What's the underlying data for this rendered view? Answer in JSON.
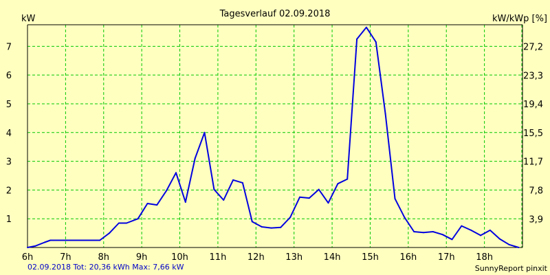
{
  "colors": {
    "background": "#ffffc0",
    "grid": "#00c800",
    "line": "#0000e0",
    "footer_text": "#0000c8"
  },
  "chart_data": {
    "type": "line",
    "title": "Tagesverlauf 02.09.2018",
    "ylabel_left": "kW",
    "ylabel_right": "kW/kWp [%]",
    "xlim": [
      6,
      19
    ],
    "ylim": [
      0,
      7.75
    ],
    "x_ticks": [
      6,
      7,
      8,
      9,
      10,
      11,
      12,
      13,
      14,
      15,
      16,
      17,
      18
    ],
    "x_tick_labels": [
      "6h",
      "7h",
      "8h",
      "9h",
      "10h",
      "11h",
      "12h",
      "13h",
      "14h",
      "15h",
      "16h",
      "17h",
      "18h"
    ],
    "y_ticks_left": [
      1,
      2,
      3,
      4,
      5,
      6,
      7
    ],
    "y_tick_labels_left": [
      "1",
      "2",
      "3",
      "4",
      "5",
      "6",
      "7"
    ],
    "y_ticks_right": [
      0.998,
      1.998,
      3.0,
      3.996,
      4.995,
      5.995,
      6.995
    ],
    "y_tick_labels_right": [
      "3,9",
      "7,8",
      "11,7",
      "15,5",
      "19,4",
      "23,3",
      "27,2"
    ],
    "grid": true,
    "series": [
      {
        "x": [
          6.0,
          6.2,
          6.45,
          6.6,
          7.0,
          7.5,
          7.9,
          8.15,
          8.4,
          8.6,
          8.9,
          9.15,
          9.4,
          9.65,
          9.9,
          10.15,
          10.4,
          10.65,
          10.9,
          11.15,
          11.4,
          11.65,
          11.9,
          12.15,
          12.4,
          12.65,
          12.9,
          13.15,
          13.4,
          13.65,
          13.9,
          14.15,
          14.4,
          14.65,
          14.9,
          15.15,
          15.4,
          15.65,
          15.9,
          16.15,
          16.4,
          16.65,
          16.9,
          17.15,
          17.4,
          17.65,
          17.9,
          18.15,
          18.4,
          18.65,
          18.9
        ],
        "y": [
          0.0,
          0.05,
          0.18,
          0.25,
          0.25,
          0.25,
          0.25,
          0.5,
          0.85,
          0.85,
          1.0,
          1.53,
          1.48,
          1.98,
          2.6,
          1.58,
          3.1,
          4.0,
          2.02,
          1.65,
          2.35,
          2.25,
          0.9,
          0.72,
          0.68,
          0.7,
          1.05,
          1.75,
          1.72,
          2.02,
          1.55,
          2.22,
          2.38,
          7.25,
          7.66,
          7.15,
          4.65,
          1.7,
          1.05,
          0.55,
          0.52,
          0.55,
          0.45,
          0.28,
          0.75,
          0.6,
          0.42,
          0.6,
          0.3,
          0.1,
          0.0
        ]
      }
    ]
  },
  "footer": {
    "stats": "02.09.2018 Tot: 20,36 kWh Max: 7,66 kW",
    "brand": "SunnyReport pinxit"
  }
}
